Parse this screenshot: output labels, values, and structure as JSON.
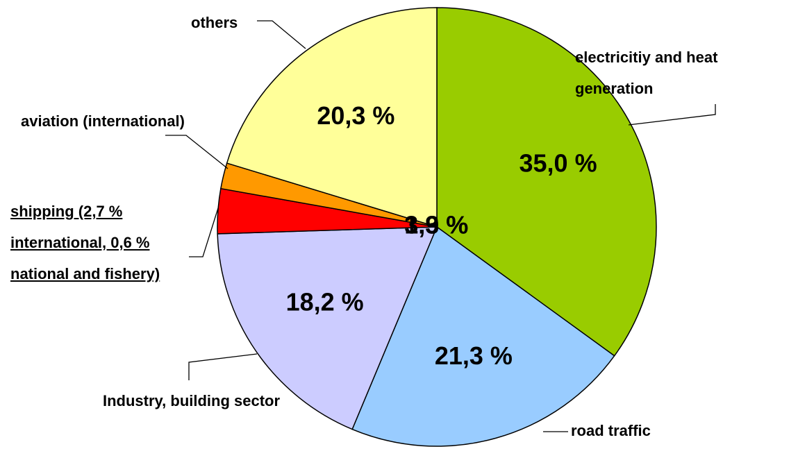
{
  "chart_data": {
    "type": "pie",
    "categories": [
      "electricitiy and heat generation",
      "road traffic",
      "Industry, building sector",
      "shipping (2,7 % international, 0,6 % national and fishery)",
      "aviation (international)",
      "others"
    ],
    "values": [
      35.0,
      21.3,
      18.2,
      3.3,
      1.9,
      20.3
    ],
    "value_labels": [
      "35,0 %",
      "21,3 %",
      "18,2 %",
      "3,3 %",
      "1,9 %",
      "20,3 %"
    ],
    "colors": [
      "#99cc00",
      "#99ccff",
      "#ccccff",
      "#ff0000",
      "#ff9900",
      "#ffff99"
    ]
  }
}
